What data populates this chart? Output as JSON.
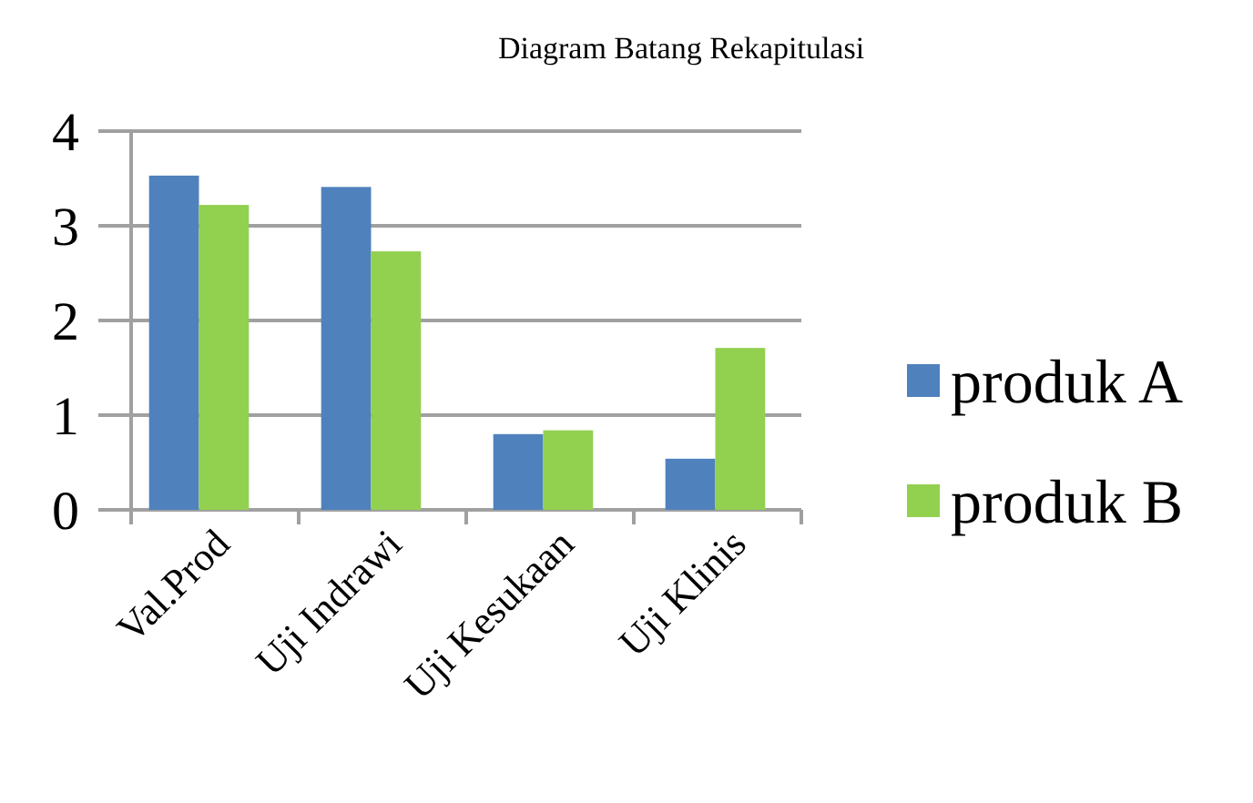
{
  "chart_data": {
    "type": "bar",
    "title": "Diagram Batang Rekapitulasi",
    "categories": [
      "Val.Prod",
      "Uji Indrawi",
      "Uji Kesukaan",
      "Uji Klinis"
    ],
    "series": [
      {
        "name": "produk A",
        "color": "#4f81bd",
        "values": [
          3.53,
          3.41,
          0.8,
          0.54
        ]
      },
      {
        "name": "produk B",
        "color": "#92d050",
        "values": [
          3.22,
          2.73,
          0.84,
          1.71
        ]
      }
    ],
    "ylim": [
      0,
      4
    ],
    "yticks": [
      0,
      1,
      2,
      3,
      4
    ],
    "grid": "y",
    "legend": "right"
  }
}
